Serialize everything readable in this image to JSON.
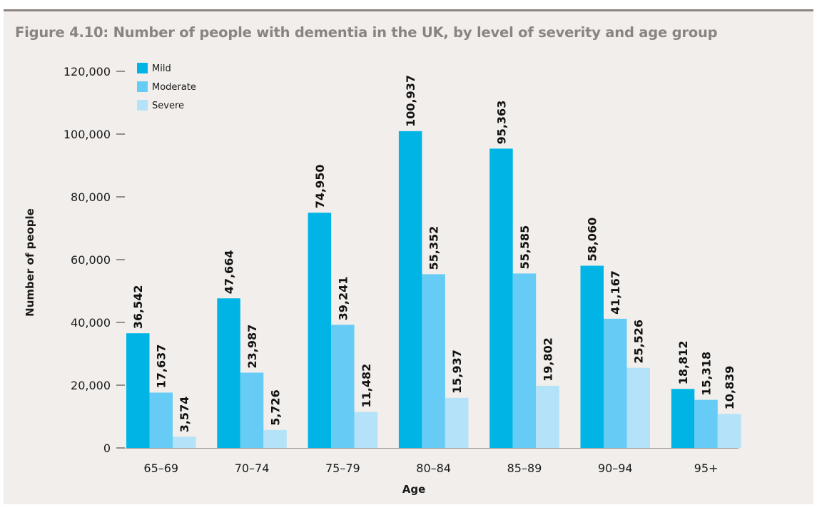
{
  "figure": {
    "title": "Figure 4.10: Number of people with dementia in the UK, by level of severity and age group"
  },
  "chart_data": {
    "type": "bar",
    "title": "Figure 4.10: Number of people with dementia in the UK, by level of severity and age group",
    "xlabel": "Age",
    "ylabel": "Number of people",
    "categories": [
      "65–69",
      "70–74",
      "75–79",
      "80–84",
      "85–89",
      "90–94",
      "95+"
    ],
    "series": [
      {
        "name": "Mild",
        "color": "#00b4e6",
        "values": [
          36542,
          47664,
          74950,
          100937,
          95363,
          58060,
          18812
        ]
      },
      {
        "name": "Moderate",
        "color": "#66ccf5",
        "values": [
          17637,
          23987,
          39241,
          55352,
          55585,
          41167,
          15318
        ]
      },
      {
        "name": "Severe",
        "color": "#b4e2f8",
        "values": [
          3574,
          5726,
          11482,
          15937,
          19802,
          25526,
          10839
        ]
      }
    ],
    "ylim": [
      0,
      120000
    ],
    "yticks": [
      0,
      20000,
      40000,
      60000,
      80000,
      100000,
      120000
    ],
    "ytick_labels": [
      "0",
      "20,000",
      "40,000",
      "60,000",
      "80,000",
      "100,000",
      "120,000"
    ],
    "data_labels": [
      [
        "36,542",
        "47,664",
        "74,950",
        "100,937",
        "95,363",
        "58,060",
        "18,812"
      ],
      [
        "17,637",
        "23,987",
        "39,241",
        "55,352",
        "55,585",
        "41,167",
        "15,318"
      ],
      [
        "3,574",
        "5,726",
        "11,482",
        "15,937",
        "19,802",
        "25,526",
        "10,839"
      ]
    ],
    "legend_position": "top-left",
    "grid": false
  }
}
